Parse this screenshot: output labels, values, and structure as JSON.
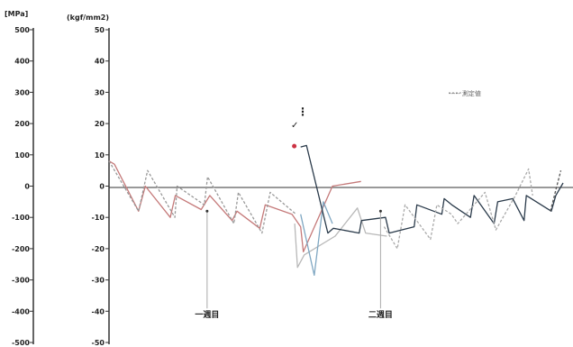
{
  "chart_data": {
    "type": "line",
    "title": "",
    "y_axes": [
      {
        "unit": "[MPa]",
        "range": [
          -500,
          500
        ],
        "ticks": [
          "500",
          "400",
          "300",
          "200",
          "100",
          "0",
          "-100",
          "-200",
          "-300",
          "-400",
          "-500"
        ]
      },
      {
        "unit": "(kgf/mm2)",
        "range": [
          -50,
          50
        ],
        "ticks": [
          "50",
          "40",
          "30",
          "20",
          "10",
          "0",
          "-10",
          "-20",
          "-30",
          "-40",
          "-50"
        ]
      }
    ],
    "ylim": [
      -50,
      50
    ],
    "xlim": [
      0,
      100
    ],
    "grid": false,
    "legend": {
      "position": "top-right",
      "entries": [
        "----- 測定値"
      ]
    },
    "annotations": [
      {
        "label": "一週目",
        "x": 21.6,
        "y": -42
      },
      {
        "label": "二週目",
        "x": 59.8,
        "y": -42
      }
    ],
    "series": [
      {
        "color": "#c57a7a",
        "style": "solid",
        "points": [
          [
            0,
            8
          ],
          [
            1.2,
            7
          ],
          [
            6.5,
            -8
          ],
          [
            8,
            0
          ],
          [
            13.5,
            -10
          ],
          [
            14.6,
            -3
          ],
          [
            20.3,
            -7.5
          ],
          [
            22.2,
            -3
          ],
          [
            27.1,
            -11
          ],
          [
            28.2,
            -8
          ],
          [
            33.2,
            -13.5
          ],
          [
            34.4,
            -6
          ],
          [
            40.3,
            -9
          ],
          [
            42.2,
            -13
          ],
          [
            42.8,
            -21
          ],
          [
            49.2,
            0
          ],
          [
            55.5,
            1.5
          ]
        ]
      },
      {
        "color": "#999999",
        "style": "dashed",
        "points": [
          [
            0,
            8
          ],
          [
            6.5,
            -8
          ],
          [
            8.5,
            5
          ],
          [
            14.5,
            -10
          ],
          [
            15,
            0
          ],
          [
            21,
            -6
          ],
          [
            21.7,
            3
          ],
          [
            27.5,
            -12
          ],
          [
            28.5,
            -2
          ],
          [
            33.7,
            -15
          ],
          [
            35.5,
            -2
          ],
          [
            41.2,
            -9
          ]
        ]
      },
      {
        "color": "#b8b8b8",
        "style": "solid",
        "points": [
          [
            40.9,
            -12
          ],
          [
            41.5,
            -26
          ],
          [
            43,
            -22
          ],
          [
            49.8,
            -16
          ],
          [
            54.7,
            -7
          ],
          [
            56.5,
            -15
          ],
          [
            61.2,
            -16
          ]
        ]
      },
      {
        "color": "#7fa7c2",
        "style": "solid",
        "points": [
          [
            42.2,
            -9
          ],
          [
            45.2,
            -28.5
          ],
          [
            47.2,
            -5
          ],
          [
            49.2,
            -12
          ]
        ]
      },
      {
        "color": "#2a3a4a",
        "style": "solid",
        "points": [
          [
            42.2,
            12.5
          ],
          [
            43.5,
            13
          ],
          [
            48.2,
            -15
          ],
          [
            49.4,
            -13.5
          ],
          [
            55.1,
            -15
          ],
          [
            55.6,
            -11
          ],
          [
            60.9,
            -10
          ],
          [
            61.7,
            -15
          ],
          [
            67.2,
            -13
          ],
          [
            67.8,
            -6
          ],
          [
            73.3,
            -9
          ],
          [
            73.8,
            -4
          ],
          [
            75.5,
            -6
          ],
          [
            79.6,
            -10
          ],
          [
            80.4,
            -3
          ],
          [
            84.8,
            -12
          ],
          [
            85.6,
            -5
          ],
          [
            88.9,
            -4
          ],
          [
            91.4,
            -11
          ],
          [
            91.9,
            -3
          ],
          [
            97.4,
            -8
          ],
          [
            98.4,
            -3
          ],
          [
            100,
            1
          ]
        ]
      },
      {
        "color": "#aaaaaa",
        "style": "dashed",
        "points": [
          [
            60.6,
            -13
          ],
          [
            63.5,
            -20
          ],
          [
            65.2,
            -6
          ],
          [
            70.8,
            -17
          ],
          [
            72.2,
            -6
          ],
          [
            75.4,
            -9
          ],
          [
            76.8,
            -12
          ],
          [
            82.8,
            -2
          ],
          [
            85.2,
            -14
          ],
          [
            89.5,
            -3
          ],
          [
            92.4,
            5.5
          ],
          [
            93.3,
            -3
          ]
        ]
      },
      {
        "color": "#555555",
        "style": "dashed",
        "points": [
          [
            97.2,
            -8
          ],
          [
            99.5,
            5
          ]
        ]
      }
    ],
    "markers": [
      {
        "x": 40.8,
        "y": 12.8,
        "color": "#cc3344"
      }
    ]
  }
}
